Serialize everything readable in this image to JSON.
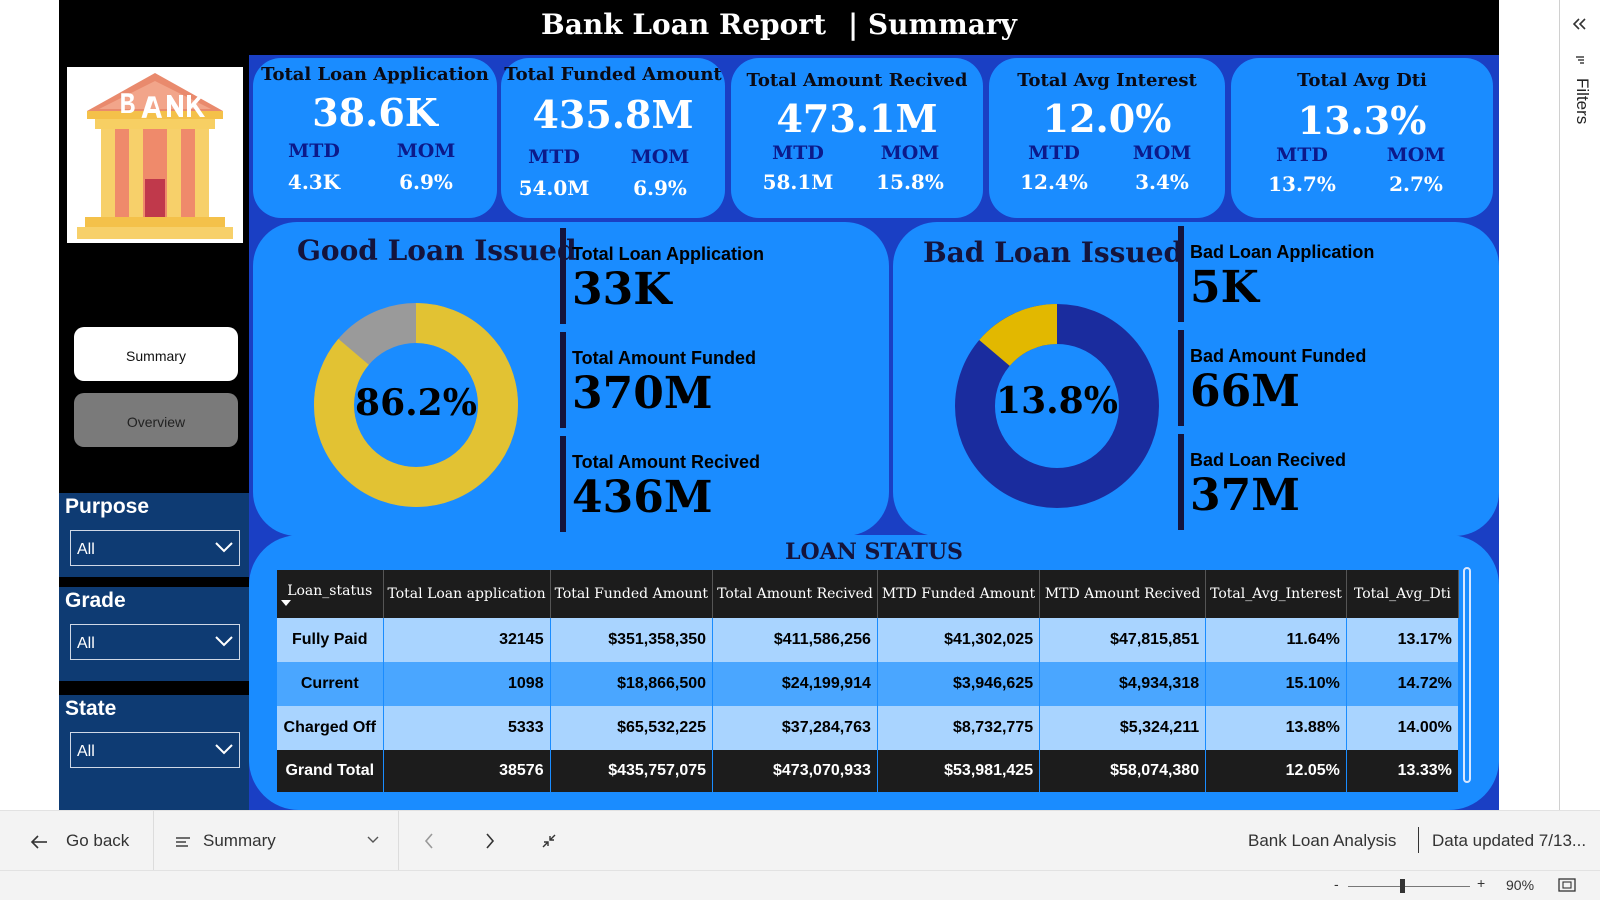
{
  "report": {
    "title": "Bank Loan Report",
    "subtitle": "| Summary"
  },
  "nav": {
    "summary": "Summary",
    "overview": "Overview"
  },
  "slicers": [
    {
      "label": "Purpose",
      "value": "All"
    },
    {
      "label": "Grade",
      "value": "All"
    },
    {
      "label": "State",
      "value": "All"
    }
  ],
  "kpis": [
    {
      "title": "Total Loan Application",
      "value": "38.6K",
      "mtd_label": "MTD",
      "mom_label": "MOM",
      "mtd": "4.3K",
      "mom": "6.9%"
    },
    {
      "title": "Total Funded Amount",
      "value": "435.8M",
      "mtd_label": "MTD",
      "mom_label": "MOM",
      "mtd": "54.0M",
      "mom": "6.9%"
    },
    {
      "title": "Total Amount Recived",
      "value": "473.1M",
      "mtd_label": "MTD",
      "mom_label": "MOM",
      "mtd": "58.1M",
      "mom": "15.8%"
    },
    {
      "title": "Total Avg Interest",
      "value": "12.0%",
      "mtd_label": "MTD",
      "mom_label": "MOM",
      "mtd": "12.4%",
      "mom": "3.4%"
    },
    {
      "title": "Total Avg Dti",
      "value": "13.3%",
      "mtd_label": "MTD",
      "mom_label": "MOM",
      "mtd": "13.7%",
      "mom": "2.7%"
    }
  ],
  "good_loan": {
    "title": "Good Loan Issued",
    "percent_label": "86.2%",
    "percent": 86.2,
    "colors": {
      "main": "#e2c233",
      "rest": "#9a9a9a"
    },
    "metrics": [
      {
        "label": "Total Loan Application",
        "value": "33K"
      },
      {
        "label": "Total Amount Funded",
        "value": "370M"
      },
      {
        "label": "Total Amount Recived",
        "value": "436M"
      }
    ]
  },
  "bad_loan": {
    "title": "Bad Loan Issued",
    "percent_label": "13.8%",
    "percent": 13.8,
    "colors": {
      "main": "#e2b800",
      "rest": "#1a2c9e"
    },
    "metrics": [
      {
        "label": "Bad Loan Application",
        "value": "5K"
      },
      {
        "label": "Bad Amount Funded",
        "value": "66M"
      },
      {
        "label": "Bad Loan Recived",
        "value": "37M"
      }
    ]
  },
  "loan_status": {
    "title": "LOAN STATUS",
    "columns": [
      "Loan_status",
      "Total Loan application",
      "Total Funded Amount",
      "Total Amount Recived",
      "MTD Funded Amount",
      "MTD Amount Recived",
      "Total_Avg_Interest",
      "Total_Avg_Dti"
    ],
    "rows": [
      [
        "Fully Paid",
        "32145",
        "$351,358,350",
        "$411,586,256",
        "$41,302,025",
        "$47,815,851",
        "11.64%",
        "13.17%"
      ],
      [
        "Current",
        "1098",
        "$18,866,500",
        "$24,199,914",
        "$3,946,625",
        "$4,934,318",
        "15.10%",
        "14.72%"
      ],
      [
        "Charged Off",
        "5333",
        "$65,532,225",
        "$37,284,763",
        "$8,732,775",
        "$5,324,211",
        "13.88%",
        "14.00%"
      ]
    ],
    "total": [
      "Grand Total",
      "38576",
      "$435,757,075",
      "$473,070,933",
      "$53,981,425",
      "$58,074,380",
      "12.05%",
      "13.33%"
    ]
  },
  "filters_pane": {
    "label": "Filters"
  },
  "bottom": {
    "go_back": "Go back",
    "page": "Summary",
    "report_name": "Bank Loan Analysis",
    "updated": "Data updated 7/13..."
  },
  "zoom": {
    "minus": "-",
    "plus": "+",
    "level": "90%"
  }
}
